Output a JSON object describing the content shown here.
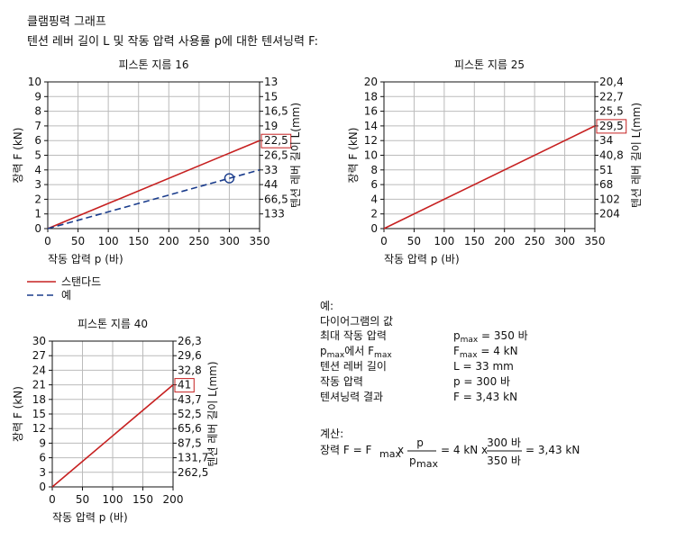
{
  "header": {
    "title": "클램핑력 그래프",
    "subtitle": "텐션 레버 길이 L 및 작동 압력 사용률 p에 대한 텐셔닝력 F:"
  },
  "chart_data": [
    {
      "type": "line",
      "title": "피스톤 지름 16",
      "x_label": "작동 압력 p (바)",
      "y_label": "장력 F (kN)",
      "y2_label": "텐션 레버 길이 L(mm)",
      "xlim": [
        0,
        350
      ],
      "xticks": [
        0,
        50,
        100,
        150,
        200,
        250,
        300,
        350
      ],
      "ylim": [
        0,
        10
      ],
      "yticks": [
        0,
        1,
        2,
        3,
        4,
        5,
        6,
        7,
        8,
        9,
        10
      ],
      "y2ticks": [
        {
          "value": 13,
          "label": "13"
        },
        {
          "value": 15,
          "label": "15"
        },
        {
          "value": 16.5,
          "label": "16,5"
        },
        {
          "value": 19,
          "label": "19"
        },
        {
          "value": 22.5,
          "label": "22,5"
        },
        {
          "value": 26.5,
          "label": "26,5"
        },
        {
          "value": 33,
          "label": "33"
        },
        {
          "value": 44,
          "label": "44"
        },
        {
          "value": 66.5,
          "label": "66,5"
        },
        {
          "value": 133,
          "label": "133"
        }
      ],
      "y2_highlight": 4,
      "grid": true,
      "series": [
        {
          "name": "스탠다드",
          "color": "#c62020",
          "dashed": false,
          "x": [
            0,
            350
          ],
          "values": [
            0,
            6
          ]
        },
        {
          "name": "예",
          "color": "#1a3c8c",
          "dashed": true,
          "x": [
            0,
            350
          ],
          "values": [
            0,
            4
          ]
        }
      ],
      "marker": {
        "x": 300,
        "y": 3.43,
        "color": "#1a3c8c"
      }
    },
    {
      "type": "line",
      "title": "피스톤 지름 25",
      "x_label": "작동 압력 p (바)",
      "y_label": "장력 F (kN)",
      "y2_label": "텐션 레버 길이 L(mm)",
      "xlim": [
        0,
        350
      ],
      "xticks": [
        0,
        50,
        100,
        150,
        200,
        250,
        300,
        350
      ],
      "ylim": [
        0,
        20
      ],
      "yticks": [
        0,
        2,
        4,
        6,
        8,
        10,
        12,
        14,
        16,
        18,
        20
      ],
      "y2ticks": [
        {
          "value": 20.4,
          "label": "20,4"
        },
        {
          "value": 22.7,
          "label": "22,7"
        },
        {
          "value": 25.5,
          "label": "25,5"
        },
        {
          "value": 29.5,
          "label": "29,5"
        },
        {
          "value": 34,
          "label": "34"
        },
        {
          "value": 40.8,
          "label": "40,8"
        },
        {
          "value": 51,
          "label": "51"
        },
        {
          "value": 68,
          "label": "68"
        },
        {
          "value": 102,
          "label": "102"
        },
        {
          "value": 204,
          "label": "204"
        }
      ],
      "y2_highlight": 3,
      "grid": true,
      "series": [
        {
          "color": "#c62020",
          "dashed": false,
          "x": [
            0,
            350
          ],
          "values": [
            0,
            14
          ]
        }
      ]
    },
    {
      "type": "line",
      "title": "피스톤 지름 40",
      "x_label": "작동 압력 p (바)",
      "y_label": "장력 F (kN)",
      "y2_label": "텐션 레버 길이 L(mm)",
      "xlim": [
        0,
        200
      ],
      "xticks": [
        0,
        50,
        100,
        150,
        200
      ],
      "ylim": [
        0,
        30
      ],
      "yticks": [
        0,
        3,
        6,
        9,
        12,
        15,
        18,
        21,
        24,
        27,
        30
      ],
      "y2ticks": [
        {
          "value": 26.3,
          "label": "26,3"
        },
        {
          "value": 29.6,
          "label": "29,6"
        },
        {
          "value": 32.8,
          "label": "32,8"
        },
        {
          "value": 41,
          "label": "41"
        },
        {
          "value": 43.7,
          "label": "43,7"
        },
        {
          "value": 52.5,
          "label": "52,5"
        },
        {
          "value": 65.6,
          "label": "65,6"
        },
        {
          "value": 87.5,
          "label": "87,5"
        },
        {
          "value": 131.7,
          "label": "131,7"
        },
        {
          "value": 262.5,
          "label": "262,5"
        }
      ],
      "y2_highlight": 3,
      "grid": true,
      "series": [
        {
          "color": "#c62020",
          "dashed": false,
          "x": [
            0,
            200
          ],
          "values": [
            0,
            21
          ]
        }
      ]
    }
  ],
  "example": {
    "title": "예:",
    "subtitle": "다이어그램의 값",
    "rows": [
      {
        "label": [
          {
            "text": "최대 작동 압력"
          }
        ],
        "value": [
          {
            "text": "p"
          },
          {
            "sub": "max"
          },
          {
            "text": " = 350 바"
          }
        ]
      },
      {
        "label": [
          {
            "text": "p"
          },
          {
            "sub": "max"
          },
          {
            "text": "에서 F"
          },
          {
            "sub": "max"
          }
        ],
        "value": [
          {
            "text": "F"
          },
          {
            "sub": "max"
          },
          {
            "text": " = 4 kN"
          }
        ]
      },
      {
        "label": [
          {
            "text": "텐션 레버 길이"
          }
        ],
        "value": [
          {
            "text": "L = 33 mm"
          }
        ]
      },
      {
        "label": [
          {
            "text": "작동 압력"
          }
        ],
        "value": [
          {
            "text": "p = 300 바"
          }
        ]
      },
      {
        "label": [
          {
            "text": "텐셔닝력 결과"
          }
        ],
        "value": [
          {
            "text": "F = 3,43 kN"
          }
        ]
      }
    ]
  },
  "calculation": {
    "title": "계산:",
    "lhs": "장력 F = F",
    "lhs_sub": "max",
    "op": "x",
    "frac1_num": "p",
    "frac1_den": "p",
    "frac1_den_sub": "max",
    "mid": "= 4 kN x",
    "frac2_num": "300 바",
    "frac2_den": "350 바",
    "result": "= 3,43 kN"
  }
}
